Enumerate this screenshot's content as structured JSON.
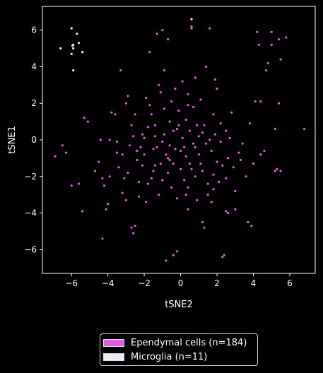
{
  "chart_data": {
    "type": "scatter",
    "xlabel": "tSNE2",
    "ylabel": "tSNE1",
    "xlim": [
      -7.6,
      7.4
    ],
    "ylim": [
      -7.3,
      7.3
    ],
    "x_ticks": [
      -6,
      -4,
      -2,
      0,
      2,
      4,
      6
    ],
    "y_ticks": [
      -6,
      -4,
      -2,
      0,
      2,
      4,
      6
    ],
    "x_tick_labels": [
      "−6",
      "−4",
      "−2",
      "0",
      "2",
      "4",
      "6"
    ],
    "y_tick_labels": [
      "−6",
      "−4",
      "−2",
      "0",
      "2",
      "4",
      "6"
    ],
    "grid": false,
    "legend_position": "bottom-center",
    "series": [
      {
        "name": "Ependymal cells (n=184)",
        "color": "#e35be3",
        "points": [
          [
            -6.9,
            -0.9
          ],
          [
            -6.5,
            -0.3
          ],
          [
            -6.3,
            -0.7
          ],
          [
            -6.0,
            -2.5
          ],
          [
            -5.6,
            -2.4
          ],
          [
            -5.4,
            -3.9
          ],
          [
            -5.3,
            1.2
          ],
          [
            -5.1,
            1.0
          ],
          [
            -4.7,
            -1.7
          ],
          [
            -4.5,
            -1.2
          ],
          [
            -4.4,
            0.0
          ],
          [
            -4.3,
            -2.1
          ],
          [
            -4.2,
            -2.5
          ],
          [
            -4.1,
            -3.8
          ],
          [
            -4.0,
            -3.5
          ],
          [
            -4.3,
            -5.4
          ],
          [
            -3.9,
            0.0
          ],
          [
            -3.8,
            1.5
          ],
          [
            -3.6,
            1.4
          ],
          [
            -3.5,
            -0.7
          ],
          [
            -3.4,
            -1.5
          ],
          [
            -3.3,
            3.8
          ],
          [
            -3.2,
            -0.8
          ],
          [
            -3.1,
            -2.1
          ],
          [
            -3.0,
            2.0
          ],
          [
            -3.0,
            -3.3
          ],
          [
            -2.9,
            2.4
          ],
          [
            -2.8,
            -0.3
          ],
          [
            -2.7,
            0.8
          ],
          [
            -2.7,
            -4.8
          ],
          [
            -2.6,
            -5.1
          ],
          [
            -2.5,
            -4.7
          ],
          [
            -2.5,
            1.4
          ],
          [
            -2.4,
            -1.1
          ],
          [
            -2.3,
            -2.3
          ],
          [
            -2.2,
            -0.4
          ],
          [
            -2.1,
            0.3
          ],
          [
            -2.0,
            -0.8
          ],
          [
            -1.9,
            2.3
          ],
          [
            -1.8,
            -2.4
          ],
          [
            -1.7,
            4.8
          ],
          [
            -1.6,
            1.4
          ],
          [
            -1.5,
            -0.5
          ],
          [
            -1.4,
            0.8
          ],
          [
            -1.4,
            -1.4
          ],
          [
            -1.3,
            5.8
          ],
          [
            -1.2,
            3.0
          ],
          [
            -1.2,
            -3.0
          ],
          [
            -1.1,
            2.6
          ],
          [
            -1.0,
            6.0
          ],
          [
            -1.0,
            -0.1
          ],
          [
            -0.9,
            1.7
          ],
          [
            -0.9,
            3.8
          ],
          [
            -0.8,
            -6.6
          ],
          [
            -0.8,
            -0.8
          ],
          [
            -0.7,
            5.5
          ],
          [
            -0.7,
            -1.8
          ],
          [
            -0.6,
            1.0
          ],
          [
            -0.6,
            -1.1
          ],
          [
            -0.5,
            2.1
          ],
          [
            -0.5,
            -2.6
          ],
          [
            -0.4,
            -6.3
          ],
          [
            -0.4,
            0.5
          ],
          [
            -0.3,
            -0.5
          ],
          [
            -0.2,
            -6.1
          ],
          [
            -0.2,
            -3.2
          ],
          [
            -0.1,
            1.6
          ],
          [
            0.0,
            -1.6
          ],
          [
            0.1,
            3.2
          ],
          [
            0.1,
            0.1
          ],
          [
            0.2,
            -2.2
          ],
          [
            0.3,
            1.1
          ],
          [
            0.3,
            -0.9
          ],
          [
            0.4,
            2.5
          ],
          [
            0.4,
            -3.8
          ],
          [
            0.5,
            0.5
          ],
          [
            0.5,
            -1.3
          ],
          [
            0.6,
            6.2
          ],
          [
            0.6,
            6.1
          ],
          [
            0.7,
            1.8
          ],
          [
            0.7,
            -0.2
          ],
          [
            0.8,
            -2.0
          ],
          [
            0.8,
            3.4
          ],
          [
            0.9,
            -3.3
          ],
          [
            1.0,
            0.2
          ],
          [
            1.0,
            -0.8
          ],
          [
            1.1,
            2.2
          ],
          [
            1.2,
            -1.7
          ],
          [
            1.2,
            -4.5
          ],
          [
            1.3,
            0.8
          ],
          [
            1.3,
            -4.8
          ],
          [
            1.4,
            4.0
          ],
          [
            1.5,
            -2.4
          ],
          [
            1.6,
            6.1
          ],
          [
            1.6,
            0.0
          ],
          [
            1.7,
            -0.6
          ],
          [
            1.8,
            1.4
          ],
          [
            1.8,
            -2.7
          ],
          [
            1.9,
            3.3
          ],
          [
            2.0,
            -1.2
          ],
          [
            2.1,
            -2.3
          ],
          [
            2.2,
            0.9
          ],
          [
            2.3,
            -6.4
          ],
          [
            2.4,
            -6.3
          ],
          [
            2.5,
            -3.9
          ],
          [
            2.5,
            0.5
          ],
          [
            2.6,
            -4.0
          ],
          [
            2.7,
            0.1
          ],
          [
            2.8,
            1.5
          ],
          [
            2.9,
            -1.5
          ],
          [
            3.0,
            -2.8
          ],
          [
            3.0,
            -3.8
          ],
          [
            3.2,
            -0.7
          ],
          [
            3.4,
            -0.2
          ],
          [
            3.6,
            -2.0
          ],
          [
            3.7,
            -4.5
          ],
          [
            3.8,
            0.9
          ],
          [
            3.9,
            -4.7
          ],
          [
            4.0,
            -1.3
          ],
          [
            4.1,
            2.1
          ],
          [
            4.2,
            5.9
          ],
          [
            4.3,
            5.2
          ],
          [
            4.4,
            2.1
          ],
          [
            4.4,
            -0.8
          ],
          [
            4.6,
            -0.6
          ],
          [
            4.7,
            3.8
          ],
          [
            4.8,
            4.2
          ],
          [
            5.0,
            5.9
          ],
          [
            5.0,
            5.2
          ],
          [
            5.2,
            0.6
          ],
          [
            5.2,
            -1.7
          ],
          [
            5.3,
            -1.6
          ],
          [
            5.4,
            2.0
          ],
          [
            5.4,
            5.5
          ],
          [
            5.5,
            -1.7
          ],
          [
            5.5,
            4.4
          ],
          [
            5.8,
            5.6
          ],
          [
            6.8,
            0.6
          ],
          [
            -3.9,
            -2.0
          ],
          [
            -2.3,
            -3.1
          ],
          [
            -1.6,
            -2.1
          ],
          [
            -1.0,
            -2.2
          ],
          [
            -0.6,
            -0.3
          ],
          [
            0.4,
            -2.6
          ],
          [
            1.4,
            -0.2
          ],
          [
            2.2,
            -0.1
          ],
          [
            2.6,
            -1.0
          ],
          [
            -2.0,
            0.1
          ],
          [
            -1.3,
            -0.4
          ],
          [
            -0.2,
            0.6
          ],
          [
            0.9,
            0.8
          ],
          [
            1.8,
            -1.9
          ],
          [
            -2.9,
            -1.8
          ],
          [
            -3.5,
            -0.1
          ],
          [
            -1.5,
            -1.7
          ],
          [
            0.2,
            -0.4
          ],
          [
            1.1,
            -1.3
          ],
          [
            2.5,
            -2.1
          ],
          [
            -2.1,
            -1.4
          ],
          [
            -0.9,
            0.3
          ],
          [
            0.6,
            -1.6
          ],
          [
            1.9,
            0.3
          ],
          [
            -1.8,
            0.7
          ],
          [
            -1.1,
            -1.3
          ],
          [
            0.0,
            -0.6
          ],
          [
            1.5,
            -3.0
          ],
          [
            2.3,
            -1.4
          ],
          [
            -2.6,
            0.2
          ],
          [
            -0.7,
            -1.0
          ],
          [
            0.8,
            -0.4
          ],
          [
            -1.4,
            0.2
          ],
          [
            -0.4,
            -1.3
          ],
          [
            1.2,
            0.4
          ],
          [
            -2.4,
            -0.6
          ],
          [
            -0.1,
            0.8
          ],
          [
            0.3,
            -3.0
          ],
          [
            -1.9,
            -3.4
          ],
          [
            1.7,
            -3.4
          ],
          [
            -3.2,
            -2.9
          ],
          [
            3.3,
            -1.1
          ],
          [
            2.0,
            2.8
          ],
          [
            -0.3,
            2.8
          ],
          [
            -1.7,
            1.9
          ],
          [
            0.4,
            1.9
          ]
        ]
      },
      {
        "name": "Microglia (n=11)",
        "color": "#ececf8",
        "points": [
          [
            -6.6,
            5.0
          ],
          [
            -6.0,
            6.1
          ],
          [
            -5.9,
            5.2
          ],
          [
            -5.9,
            5.0
          ],
          [
            -5.7,
            5.8
          ],
          [
            -6.0,
            4.7
          ],
          [
            -5.9,
            3.8
          ],
          [
            -5.6,
            5.3
          ],
          [
            -5.4,
            4.8
          ],
          [
            -5.95,
            5.15
          ],
          [
            0.6,
            6.6
          ]
        ]
      }
    ]
  },
  "legend": {
    "items": [
      {
        "label": "Ependymal cells (n=184)",
        "color": "#e35be3"
      },
      {
        "label": "Microglia (n=11)",
        "color": "#ececf8"
      }
    ]
  }
}
